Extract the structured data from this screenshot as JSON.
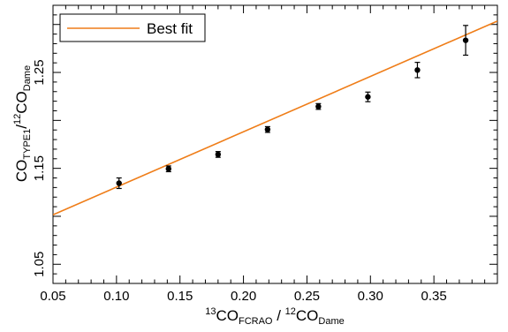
{
  "chart_data": {
    "type": "scatter",
    "xlim": [
      0.05,
      0.4
    ],
    "ylim": [
      1.03,
      1.32
    ],
    "x_ticks": [
      "0.05",
      "0.10",
      "0.15",
      "0.20",
      "0.25",
      "0.30",
      "0.35"
    ],
    "x_tick_values": [
      0.05,
      0.1,
      0.15,
      0.2,
      0.25,
      0.3,
      0.35
    ],
    "y_ticks": [
      "1.05",
      "1.15",
      "1.25"
    ],
    "y_tick_values": [
      1.05,
      1.15,
      1.25
    ],
    "xlabel": {
      "iso1": "13",
      "main1": "CO",
      "sub1": "FCRAO",
      "sep": " / ",
      "iso2": "12",
      "main2": "CO",
      "sub2": "Dame"
    },
    "ylabel": {
      "main1": "CO",
      "sub1": "TYPE1",
      "slash": "/",
      "iso2": "12",
      "main2": "CO",
      "sub2": "Dame"
    },
    "grid": false,
    "legend_position": "top-left",
    "points": [
      {
        "x": 0.102,
        "y": 1.1345,
        "err": 0.0055
      },
      {
        "x": 0.141,
        "y": 1.1495,
        "err": 0.003
      },
      {
        "x": 0.18,
        "y": 1.1645,
        "err": 0.003
      },
      {
        "x": 0.219,
        "y": 1.1905,
        "err": 0.003
      },
      {
        "x": 0.259,
        "y": 1.2145,
        "err": 0.003
      },
      {
        "x": 0.298,
        "y": 1.2245,
        "err": 0.005
      },
      {
        "x": 0.337,
        "y": 1.2525,
        "err": 0.008
      },
      {
        "x": 0.375,
        "y": 1.2835,
        "err": 0.0155
      }
    ],
    "fit": {
      "name": "Best fit",
      "slope": 0.5771,
      "intercept": 1.0727,
      "color": "#ef7d18"
    },
    "point_color": "#000000"
  }
}
